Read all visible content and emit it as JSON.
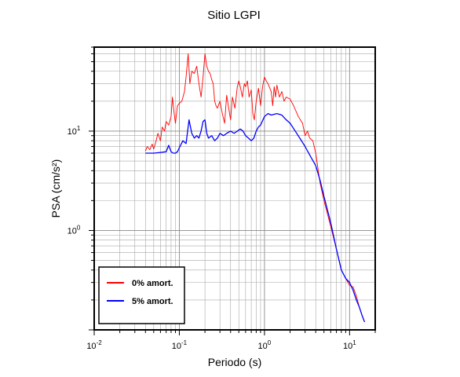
{
  "chart_data": {
    "type": "line",
    "title": "Sitio LGPI",
    "xlabel": "Periodo (s)",
    "ylabel": "PSA (cm/s²)",
    "x_scale": "log",
    "y_scale": "log",
    "xlim": [
      0.01,
      20
    ],
    "ylim": [
      0.1,
      70
    ],
    "grid": true,
    "legend_position": "bottom-left",
    "x_tick_labels": [
      {
        "value": 0.01,
        "base": "10",
        "exp": "-2"
      },
      {
        "value": 0.1,
        "base": "10",
        "exp": "-1"
      },
      {
        "value": 1,
        "base": "10",
        "exp": "0"
      },
      {
        "value": 10,
        "base": "10",
        "exp": "1"
      }
    ],
    "y_tick_labels": [
      {
        "value": 1,
        "base": "10",
        "exp": "0"
      },
      {
        "value": 10,
        "base": "10",
        "exp": "1"
      }
    ],
    "series": [
      {
        "name": "0% amort.",
        "color": "#ff0000",
        "points": [
          [
            0.04,
            6.3
          ],
          [
            0.042,
            7.0
          ],
          [
            0.045,
            6.5
          ],
          [
            0.048,
            7.4
          ],
          [
            0.05,
            6.6
          ],
          [
            0.053,
            7.8
          ],
          [
            0.056,
            9.5
          ],
          [
            0.06,
            8.0
          ],
          [
            0.063,
            11.0
          ],
          [
            0.067,
            10.0
          ],
          [
            0.07,
            12.5
          ],
          [
            0.075,
            11.5
          ],
          [
            0.08,
            14.0
          ],
          [
            0.083,
            22.0
          ],
          [
            0.087,
            15.0
          ],
          [
            0.09,
            12.0
          ],
          [
            0.095,
            18.0
          ],
          [
            0.1,
            19.0
          ],
          [
            0.107,
            20.0
          ],
          [
            0.115,
            25.0
          ],
          [
            0.12,
            35.0
          ],
          [
            0.127,
            60.0
          ],
          [
            0.133,
            30.0
          ],
          [
            0.14,
            40.0
          ],
          [
            0.15,
            38.0
          ],
          [
            0.16,
            45.0
          ],
          [
            0.17,
            30.0
          ],
          [
            0.18,
            22.0
          ],
          [
            0.19,
            35.0
          ],
          [
            0.2,
            60.0
          ],
          [
            0.21,
            45.0
          ],
          [
            0.22,
            40.0
          ],
          [
            0.23,
            38.0
          ],
          [
            0.24,
            33.0
          ],
          [
            0.25,
            30.0
          ],
          [
            0.26,
            20.0
          ],
          [
            0.27,
            18.0
          ],
          [
            0.28,
            17.0
          ],
          [
            0.3,
            20.0
          ],
          [
            0.32,
            15.0
          ],
          [
            0.34,
            12.0
          ],
          [
            0.36,
            23.0
          ],
          [
            0.38,
            17.0
          ],
          [
            0.4,
            13.0
          ],
          [
            0.42,
            22.0
          ],
          [
            0.45,
            17.0
          ],
          [
            0.48,
            28.0
          ],
          [
            0.5,
            32.0
          ],
          [
            0.52,
            28.0
          ],
          [
            0.55,
            22.0
          ],
          [
            0.58,
            30.0
          ],
          [
            0.6,
            28.0
          ],
          [
            0.63,
            32.0
          ],
          [
            0.66,
            22.0
          ],
          [
            0.7,
            26.0
          ],
          [
            0.73,
            15.0
          ],
          [
            0.76,
            13.0
          ],
          [
            0.8,
            20.0
          ],
          [
            0.85,
            27.0
          ],
          [
            0.9,
            18.0
          ],
          [
            0.95,
            28.0
          ],
          [
            1.0,
            35.0
          ],
          [
            1.05,
            32.0
          ],
          [
            1.1,
            30.0
          ],
          [
            1.2,
            25.0
          ],
          [
            1.25,
            18.0
          ],
          [
            1.3,
            28.0
          ],
          [
            1.35,
            22.0
          ],
          [
            1.4,
            29.0
          ],
          [
            1.5,
            22.0
          ],
          [
            1.6,
            25.0
          ],
          [
            1.7,
            20.0
          ],
          [
            1.8,
            22.0
          ],
          [
            2.0,
            21.0
          ],
          [
            2.2,
            18.0
          ],
          [
            2.5,
            14.0
          ],
          [
            2.8,
            12.0
          ],
          [
            3.0,
            9.0
          ],
          [
            3.2,
            10.0
          ],
          [
            3.4,
            8.5
          ],
          [
            3.7,
            8.0
          ],
          [
            4.0,
            6.0
          ],
          [
            4.5,
            3.0
          ],
          [
            5.0,
            2.0
          ],
          [
            6.0,
            1.1
          ],
          [
            7.0,
            0.65
          ],
          [
            8.0,
            0.4
          ],
          [
            9.0,
            0.33
          ],
          [
            10.0,
            0.28
          ],
          [
            11.0,
            0.27
          ],
          [
            12.0,
            0.22
          ],
          [
            13.0,
            0.17
          ],
          [
            14.0,
            0.14
          ],
          [
            15.0,
            0.12
          ]
        ]
      },
      {
        "name": "5% amort.",
        "color": "#0000ff",
        "points": [
          [
            0.04,
            6.0
          ],
          [
            0.05,
            6.0
          ],
          [
            0.06,
            6.1
          ],
          [
            0.07,
            6.2
          ],
          [
            0.075,
            7.2
          ],
          [
            0.08,
            6.2
          ],
          [
            0.085,
            6.0
          ],
          [
            0.09,
            6.0
          ],
          [
            0.095,
            6.2
          ],
          [
            0.1,
            6.8
          ],
          [
            0.11,
            8.0
          ],
          [
            0.12,
            7.5
          ],
          [
            0.13,
            13.0
          ],
          [
            0.14,
            9.5
          ],
          [
            0.15,
            8.5
          ],
          [
            0.16,
            9.0
          ],
          [
            0.17,
            8.5
          ],
          [
            0.18,
            10.0
          ],
          [
            0.19,
            12.5
          ],
          [
            0.2,
            13.0
          ],
          [
            0.21,
            9.5
          ],
          [
            0.22,
            8.5
          ],
          [
            0.24,
            9.0
          ],
          [
            0.26,
            8.0
          ],
          [
            0.28,
            8.5
          ],
          [
            0.3,
            9.5
          ],
          [
            0.33,
            9.0
          ],
          [
            0.36,
            9.5
          ],
          [
            0.4,
            10.0
          ],
          [
            0.44,
            9.5
          ],
          [
            0.48,
            10.0
          ],
          [
            0.52,
            10.5
          ],
          [
            0.56,
            10.0
          ],
          [
            0.6,
            9.0
          ],
          [
            0.65,
            8.5
          ],
          [
            0.7,
            8.0
          ],
          [
            0.75,
            8.5
          ],
          [
            0.8,
            10.0
          ],
          [
            0.85,
            11.0
          ],
          [
            0.9,
            11.5
          ],
          [
            1.0,
            14.0
          ],
          [
            1.1,
            15.0
          ],
          [
            1.2,
            14.5
          ],
          [
            1.4,
            15.0
          ],
          [
            1.6,
            14.5
          ],
          [
            1.8,
            13.0
          ],
          [
            2.0,
            12.0
          ],
          [
            2.3,
            10.0
          ],
          [
            2.6,
            8.5
          ],
          [
            3.0,
            7.0
          ],
          [
            3.5,
            5.5
          ],
          [
            4.0,
            4.5
          ],
          [
            4.5,
            3.2
          ],
          [
            5.0,
            2.2
          ],
          [
            6.0,
            1.2
          ],
          [
            7.0,
            0.65
          ],
          [
            8.0,
            0.4
          ],
          [
            9.0,
            0.33
          ],
          [
            10.0,
            0.3
          ],
          [
            11.0,
            0.25
          ],
          [
            12.0,
            0.2
          ],
          [
            13.0,
            0.17
          ],
          [
            14.0,
            0.14
          ],
          [
            15.0,
            0.12
          ]
        ]
      }
    ]
  }
}
